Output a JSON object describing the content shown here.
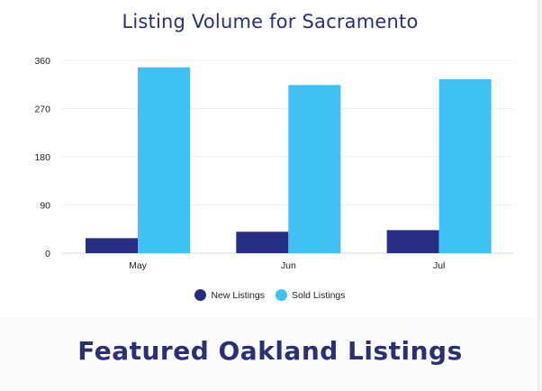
{
  "chart_data": {
    "type": "bar",
    "title": "Listing Volume for Sacramento",
    "categories": [
      "May",
      "Jun",
      "Jul"
    ],
    "series": [
      {
        "name": "New Listings",
        "values": [
          28,
          40,
          43
        ],
        "color": "#262d82"
      },
      {
        "name": "Sold Listings",
        "values": [
          347,
          314,
          325
        ],
        "color": "#40c1f3"
      }
    ],
    "yticks": [
      0,
      90,
      180,
      270,
      360
    ],
    "ylim": [
      0,
      360
    ],
    "xlabel": "",
    "ylabel": "",
    "grid": true,
    "legend_position": "bottom-center"
  },
  "featured": {
    "heading": "Featured Oakland Listings"
  },
  "colors": {
    "title": "#2b3075",
    "grid": "#f0f0f0"
  }
}
